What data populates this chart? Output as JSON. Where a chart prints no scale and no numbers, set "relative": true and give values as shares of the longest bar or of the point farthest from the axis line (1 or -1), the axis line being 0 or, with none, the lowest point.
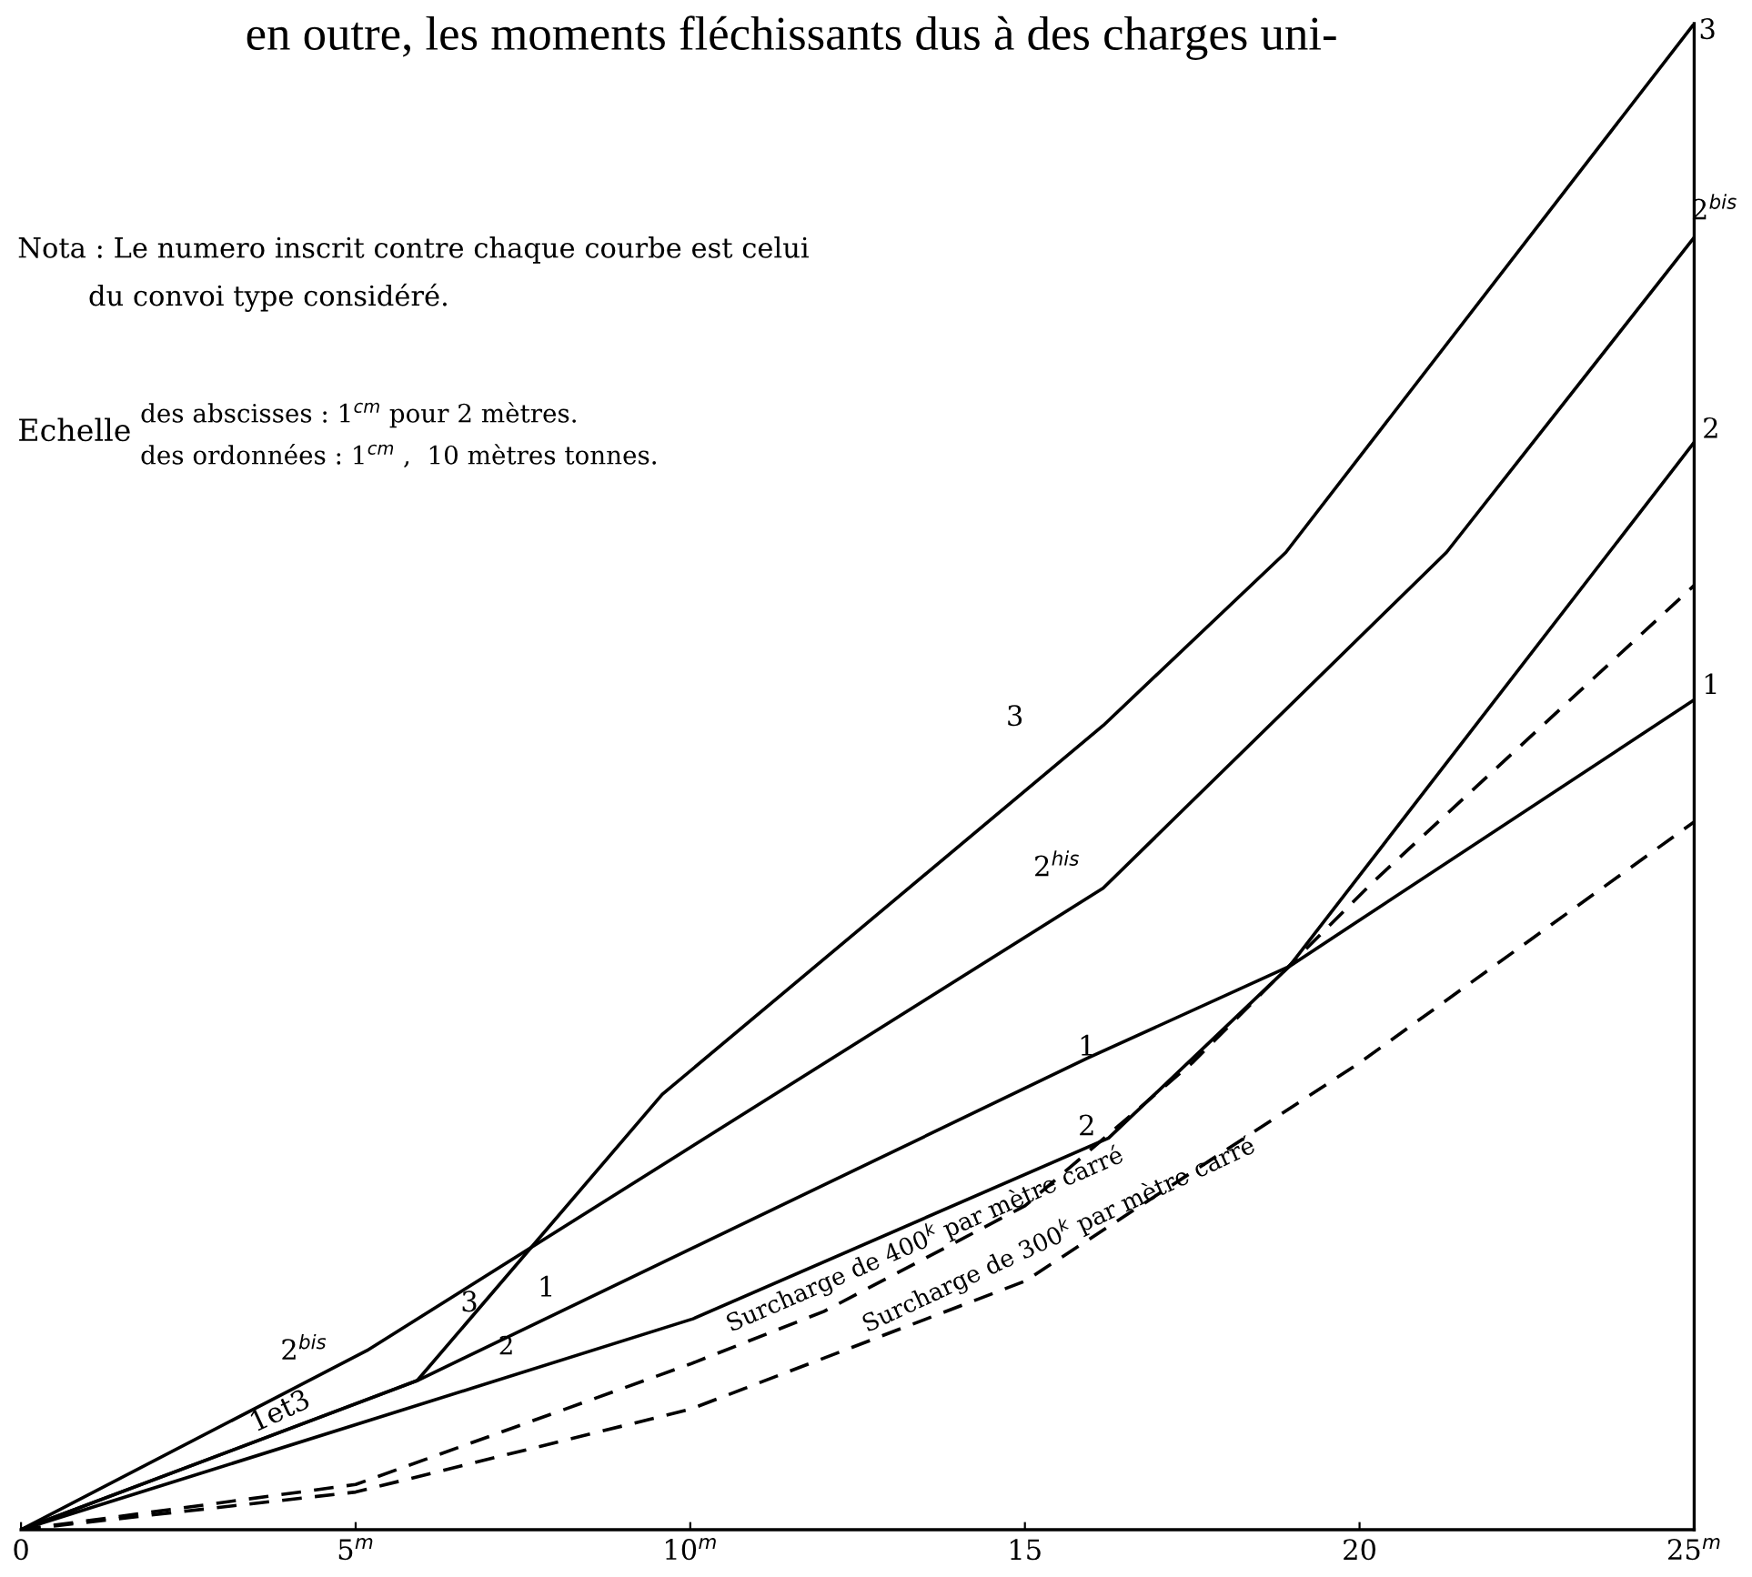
{
  "chart_data": {
    "type": "line",
    "relative": true,
    "tick_labels": "x",
    "grid": false,
    "marker": "none",
    "xlim": [
      0,
      25
    ],
    "xticks": [
      0,
      {
        "value": 5,
        "label": "5$^{m}$"
      },
      {
        "value": 10,
        "label": "10$^{m}$"
      },
      15,
      20,
      {
        "value": 25,
        "label": "25$^{m}$"
      }
    ],
    "series": [
      {
        "color": "#000000",
        "line_style": "solid",
        "x": [
          0,
          5.92,
          9.58,
          16.17,
          18.9,
          25
        ],
        "values": [
          0,
          0.099,
          0.289,
          0.534,
          0.649,
          1
        ]
      },
      {
        "color": "#000000",
        "line_style": "solid",
        "x": [
          0,
          5.17,
          16.17,
          21.3,
          25
        ],
        "values": [
          0,
          0.119,
          0.426,
          0.649,
          0.858
        ]
      },
      {
        "color": "#000000",
        "line_style": "solid",
        "x": [
          0,
          10.04,
          16.25,
          18.95,
          25
        ],
        "values": [
          0,
          0.14,
          0.26,
          0.374,
          0.722
        ]
      },
      {
        "color": "#000000",
        "line_style": "solid",
        "x": [
          0,
          5.92,
          15.93,
          18.95,
          25
        ],
        "values": [
          0,
          0.099,
          0.313,
          0.374,
          0.551
        ]
      },
      {
        "color": "#000000",
        "line_style": "dashed",
        "x": [
          0,
          5,
          10,
          12,
          15,
          17.5,
          20.2,
          25
        ],
        "values": [
          0,
          0.03,
          0.11,
          0.145,
          0.215,
          0.31,
          0.43,
          0.627
        ]
      },
      {
        "color": "#000000",
        "line_style": "dashed",
        "x": [
          0,
          5,
          10,
          15,
          20,
          25
        ],
        "values": [
          0,
          0.025,
          0.08,
          0.165,
          0.31,
          0.47
        ]
      }
    ],
    "annotations": [
      "en outre, les moments fléchissants dus à des charges uni-",
      "Nota : Le numero inscrit contre chaque courbe est celui\n        du convoi type considéré.",
      "Echelle",
      "des abscisses : 1$^{cm}$ pour 2 mètres.\ndes ordonnées : 1$^{cm}$ ,  10 mètres tonnes.",
      "3",
      "2$^{bis}$",
      "2",
      "1",
      "3",
      "2$^{his}$",
      "1",
      "2",
      "2$^{bis}$",
      "3",
      "1",
      "2",
      "1et3",
      "Surcharge de 400$^{k}$ par mètre carré",
      "Surcharge de 300$^{k}$ par mètre carré"
    ]
  }
}
